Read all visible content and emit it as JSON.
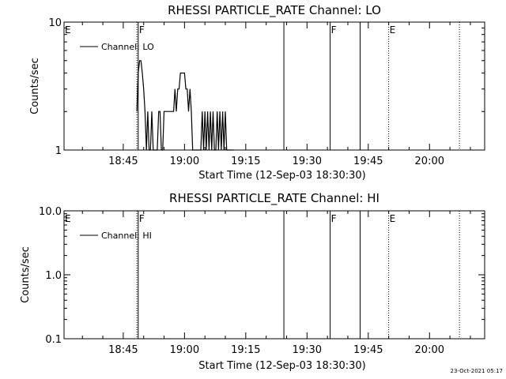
{
  "chart_data": [
    {
      "type": "line",
      "title": "RHESSI PARTICLE_RATE Channel: LO",
      "xlabel": "Start Time (12-Sep-03 18:30:30)",
      "ylabel": "Counts/sec",
      "yscale": "log",
      "ylim": [
        1,
        10
      ],
      "y_ticks": [
        "1",
        "10"
      ],
      "xlim": [
        "18:30:30",
        "20:13:30"
      ],
      "x_ticks": [
        "18:45",
        "19:00",
        "19:15",
        "19:30",
        "19:45",
        "20:00"
      ],
      "grid": false,
      "legend": {
        "position": "top-left",
        "entries": [
          "Channel: LO"
        ]
      },
      "series": [
        {
          "name": "Channel: LO",
          "x": [
            "18:48:20",
            "18:48:40",
            "18:49:00",
            "18:49:20",
            "18:49:40",
            "18:50:00",
            "18:50:20",
            "18:50:40",
            "18:51:00",
            "18:51:20",
            "18:51:40",
            "18:52:00",
            "18:52:20",
            "18:52:40",
            "18:53:00",
            "18:53:20",
            "18:53:40",
            "18:54:00",
            "18:54:20",
            "18:54:40",
            "18:55:00",
            "18:55:20",
            "18:55:40",
            "18:56:00",
            "18:56:20",
            "18:56:40",
            "18:57:00",
            "18:57:20",
            "18:57:40",
            "18:58:00",
            "18:58:20",
            "18:58:40",
            "18:59:00",
            "18:59:20",
            "18:59:40",
            "19:00:00",
            "19:00:20",
            "19:00:40",
            "19:01:00",
            "19:01:20",
            "19:01:40",
            "19:02:00",
            "19:02:20",
            "19:02:40",
            "19:03:00",
            "19:03:20",
            "19:03:40",
            "19:04:00",
            "19:04:20",
            "19:04:40",
            "19:05:00",
            "19:05:20",
            "19:05:40",
            "19:06:00",
            "19:06:20",
            "19:06:40",
            "19:07:00",
            "19:07:20",
            "19:07:40",
            "19:08:00",
            "19:08:20",
            "19:08:40",
            "19:09:00",
            "19:09:20",
            "19:09:40",
            "19:10:00",
            "19:10:20",
            "19:10:40",
            "19:11:00",
            "19:11:20",
            "19:11:40",
            "19:12:00"
          ],
          "y": [
            2,
            4,
            5,
            5,
            4,
            3,
            2,
            1,
            2,
            1,
            1,
            2,
            1,
            1,
            1,
            1,
            2,
            2,
            1,
            1,
            2,
            2,
            2,
            2,
            2,
            2,
            2,
            2,
            3,
            2,
            3,
            3,
            4,
            4,
            4,
            4,
            3,
            3,
            2,
            3,
            2,
            1,
            1,
            1,
            1,
            1,
            1,
            1,
            2,
            1,
            2,
            1,
            2,
            1,
            2,
            1,
            2,
            1,
            1,
            2,
            1,
            2,
            1,
            2,
            1,
            2,
            1,
            1,
            1,
            1,
            1,
            1
          ]
        }
      ],
      "markers": [
        {
          "time": "18:48:20",
          "style": "dotted",
          "label": ""
        },
        {
          "time": "18:48:40",
          "style": "solid",
          "label": "F"
        },
        {
          "time": "19:24:20",
          "style": "solid",
          "label": ""
        },
        {
          "time": "19:35:40",
          "style": "solid",
          "label": "F"
        },
        {
          "time": "19:43:00",
          "style": "solid",
          "label": ""
        },
        {
          "time": "19:50:00",
          "style": "dotted",
          "label": "E"
        },
        {
          "time": "20:07:20",
          "style": "dotted",
          "label": ""
        }
      ],
      "corner_label": "E"
    },
    {
      "type": "line",
      "title": "RHESSI PARTICLE_RATE Channel: HI",
      "xlabel": "Start Time (12-Sep-03 18:30:30)",
      "ylabel": "Counts/sec",
      "yscale": "log",
      "ylim": [
        0.1,
        10
      ],
      "y_ticks": [
        "0.1",
        "1.0",
        "10.0"
      ],
      "xlim": [
        "18:30:30",
        "20:13:30"
      ],
      "x_ticks": [
        "18:45",
        "19:00",
        "19:15",
        "19:30",
        "19:45",
        "20:00"
      ],
      "grid": false,
      "legend": {
        "position": "top-left",
        "entries": [
          "Channel: HI"
        ]
      },
      "series": [
        {
          "name": "Channel: HI",
          "x": [],
          "y": []
        }
      ],
      "markers": [
        {
          "time": "18:48:20",
          "style": "dotted",
          "label": ""
        },
        {
          "time": "18:48:40",
          "style": "solid",
          "label": "F"
        },
        {
          "time": "19:24:20",
          "style": "solid",
          "label": ""
        },
        {
          "time": "19:35:40",
          "style": "solid",
          "label": "F"
        },
        {
          "time": "19:43:00",
          "style": "solid",
          "label": ""
        },
        {
          "time": "19:50:00",
          "style": "dotted",
          "label": "E"
        },
        {
          "time": "20:07:20",
          "style": "dotted",
          "label": ""
        }
      ],
      "corner_label": "E"
    }
  ],
  "footer": {
    "date": "23-Oct-2021 05:17"
  }
}
